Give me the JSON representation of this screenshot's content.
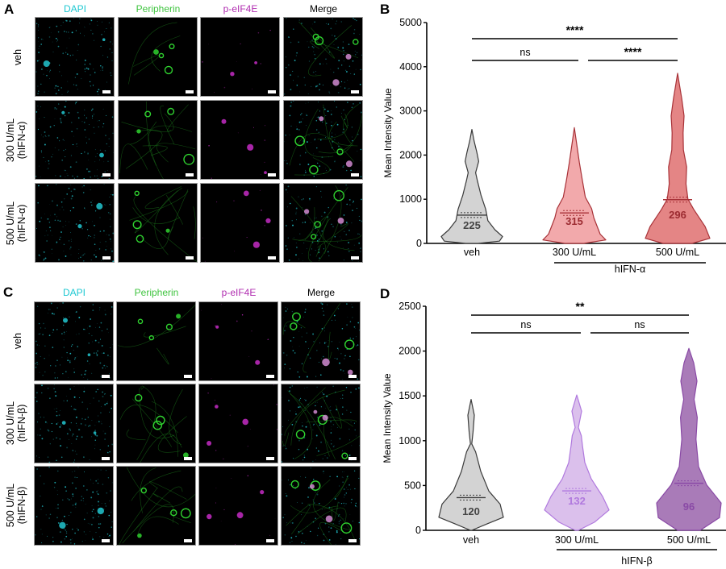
{
  "figure": {
    "panel_A": {
      "letter": "A",
      "columns": [
        {
          "label": "DAPI",
          "color": "#1ec8d2"
        },
        {
          "label": "Peripherin",
          "color": "#3fc43f"
        },
        {
          "label": "p-eIF4E",
          "color": "#b02cb0"
        },
        {
          "label": "Merge",
          "color": "#000000"
        }
      ],
      "rows": [
        {
          "line1": "veh",
          "line2": ""
        },
        {
          "line1": "300 U/mL",
          "line2": "(hIFN-α)"
        },
        {
          "line1": "500 U/mL",
          "line2": "(hIFN-α)"
        }
      ]
    },
    "panel_C": {
      "letter": "C",
      "columns": [
        {
          "label": "DAPI",
          "color": "#1ec8d2"
        },
        {
          "label": "Peripherin",
          "color": "#3fc43f"
        },
        {
          "label": "p-eIF4E",
          "color": "#b02cb0"
        },
        {
          "label": "Merge",
          "color": "#000000"
        }
      ],
      "rows": [
        {
          "line1": "veh",
          "line2": ""
        },
        {
          "line1": "300 U/mL",
          "line2": "(hIFN-β)"
        },
        {
          "line1": "500 U/mL",
          "line2": "(hIFN-β)"
        }
      ]
    }
  },
  "chart_data": [
    {
      "panel": "B",
      "type": "violin",
      "title": "",
      "xlabel": "",
      "ylabel": "Mean Intensity Value",
      "ylim": [
        0,
        5000
      ],
      "yticks": [
        0,
        1000,
        2000,
        3000,
        4000,
        5000
      ],
      "categories": [
        "veh",
        "300 U/mL",
        "500 U/mL"
      ],
      "group_label": "hIFN-α",
      "group_members": [
        "300 U/mL",
        "500 U/mL"
      ],
      "series": [
        {
          "name": "veh",
          "median": 640,
          "max": 2580,
          "min": 0,
          "n": 225,
          "fill": "#d3d3d3",
          "stroke": "#3a3a3a",
          "label_color": "#444444"
        },
        {
          "name": "300 U/mL",
          "median": 690,
          "max": 2620,
          "min": 0,
          "n": 315,
          "fill": "#f2a9ab",
          "stroke": "#a83238",
          "label_color": "#9c2b31"
        },
        {
          "name": "500 U/mL",
          "median": 990,
          "max": 3850,
          "min": 0,
          "n": 296,
          "fill": "#e48585",
          "stroke": "#a83238",
          "label_color": "#9c2b31"
        }
      ],
      "significance": [
        {
          "from": "veh",
          "to": "500 U/mL",
          "label": "****"
        },
        {
          "from": "veh",
          "to": "300 U/mL",
          "label": "ns"
        },
        {
          "from": "300 U/mL",
          "to": "500 U/mL",
          "label": "****"
        }
      ],
      "grid": false,
      "legend": "none"
    },
    {
      "panel": "D",
      "type": "violin",
      "title": "",
      "xlabel": "",
      "ylabel": "Mean Intensity Value",
      "ylim": [
        0,
        2500
      ],
      "yticks": [
        0,
        500,
        1000,
        1500,
        2000,
        2500
      ],
      "categories": [
        "veh",
        "300 U/mL",
        "500 U/mL"
      ],
      "group_label": "hIFN-β",
      "group_members": [
        "300 U/mL",
        "500 U/mL"
      ],
      "series": [
        {
          "name": "veh",
          "median": 365,
          "max": 1460,
          "min": 0,
          "n": 120,
          "fill": "#d3d3d3",
          "stroke": "#3a3a3a",
          "label_color": "#444444"
        },
        {
          "name": "300 U/mL",
          "median": 440,
          "max": 1510,
          "min": 0,
          "n": 132,
          "fill": "#dbc0ec",
          "stroke": "#b079de",
          "label_color": "#b079de"
        },
        {
          "name": "500 U/mL",
          "median": 525,
          "max": 2030,
          "min": 0,
          "n": 96,
          "fill": "#a97bb8",
          "stroke": "#8a4aa6",
          "label_color": "#8a4aa6"
        }
      ],
      "significance": [
        {
          "from": "veh",
          "to": "500 U/mL",
          "label": "**"
        },
        {
          "from": "veh",
          "to": "300 U/mL",
          "label": "ns"
        },
        {
          "from": "300 U/mL",
          "to": "500 U/mL",
          "label": "ns"
        }
      ],
      "grid": false,
      "legend": "none"
    }
  ]
}
